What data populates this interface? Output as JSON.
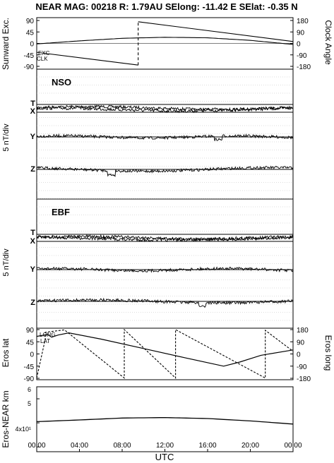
{
  "header": {
    "title": "NEAR MAG: 00218  R: 1.79AU  SElong:  -11.42 E  SElat:   -0.35 N"
  },
  "panels": {
    "top": {
      "ylabel_left": "Sunward Exc.",
      "ylabel_right": "Clock Angle",
      "left_ticks": [
        "90",
        "45",
        "0",
        "-45",
        "-90"
      ],
      "right_ticks": [
        "180",
        "90",
        "0",
        "-90",
        "-180"
      ],
      "curve_labels": [
        "EXC",
        "CLK"
      ]
    },
    "nso": {
      "name": "NSO",
      "ylabel": "5 nT/div",
      "components": [
        "T",
        "X",
        "Y",
        "Z"
      ]
    },
    "ebf": {
      "name": "EBF",
      "ylabel": "5 nT/div",
      "components": [
        "T",
        "X",
        "Y",
        "Z"
      ]
    },
    "eros": {
      "ylabel_left": "Eros lat",
      "ylabel_right": "Eros long",
      "left_ticks": [
        "90",
        "45",
        "0",
        "-45",
        "-90"
      ],
      "right_ticks": [
        "180",
        "90",
        "0",
        "-90",
        "-180"
      ],
      "curve_labels": [
        "LONG",
        "LAT"
      ]
    },
    "dist": {
      "ylabel": "Eros-NEAR km",
      "ticks": [
        "6",
        "5",
        "4x10¹"
      ]
    }
  },
  "x_axis": {
    "label": "UTC",
    "ticks": [
      "00:00",
      "04:00",
      "08:00",
      "12:00",
      "16:00",
      "20:00",
      "00:00"
    ]
  },
  "chart_data": [
    {
      "type": "line",
      "panel": "sunward-exc-clock-angle",
      "ylim_left": [
        -90,
        90
      ],
      "ylim_right": [
        -180,
        180
      ],
      "series": [
        {
          "name": "EXC",
          "x_hours": [
            0,
            4,
            8,
            12,
            16,
            20,
            24
          ],
          "values": [
            -2,
            10,
            20,
            24,
            22,
            12,
            -4
          ]
        },
        {
          "name": "CLK",
          "x_hours": [
            0,
            9.5,
            9.5,
            24
          ],
          "values": [
            -70,
            -170,
            170,
            15
          ]
        }
      ]
    },
    {
      "type": "line",
      "panel": "eros-lat-long",
      "ylim_left": [
        -90,
        90
      ],
      "ylim_right": [
        -180,
        180
      ],
      "series": [
        {
          "name": "LAT",
          "x_hours": [
            0,
            1,
            1.4,
            2,
            3,
            6,
            10,
            14,
            17.5,
            19,
            21,
            24
          ],
          "values": [
            65,
            72,
            62,
            70,
            78,
            55,
            20,
            -15,
            -45,
            -30,
            -5,
            15
          ]
        },
        {
          "name": "LONG",
          "x_hours": [
            0,
            0.8,
            0.8,
            2.6,
            8.2,
            8.2,
            13,
            13,
            21.4,
            21.4,
            24
          ],
          "values": [
            -178,
            110,
            160,
            178,
            -178,
            180,
            -178,
            180,
            -178,
            175,
            20
          ]
        }
      ]
    },
    {
      "type": "line",
      "panel": "eros-near-distance",
      "ylim": [
        38,
        65
      ],
      "series": [
        {
          "name": "Eros-NEAR km",
          "x_hours": [
            0,
            4,
            8,
            12,
            16,
            20,
            24
          ],
          "values": [
            50.5,
            51.2,
            52.0,
            52.2,
            51.8,
            50.8,
            49.5
          ]
        }
      ]
    }
  ]
}
